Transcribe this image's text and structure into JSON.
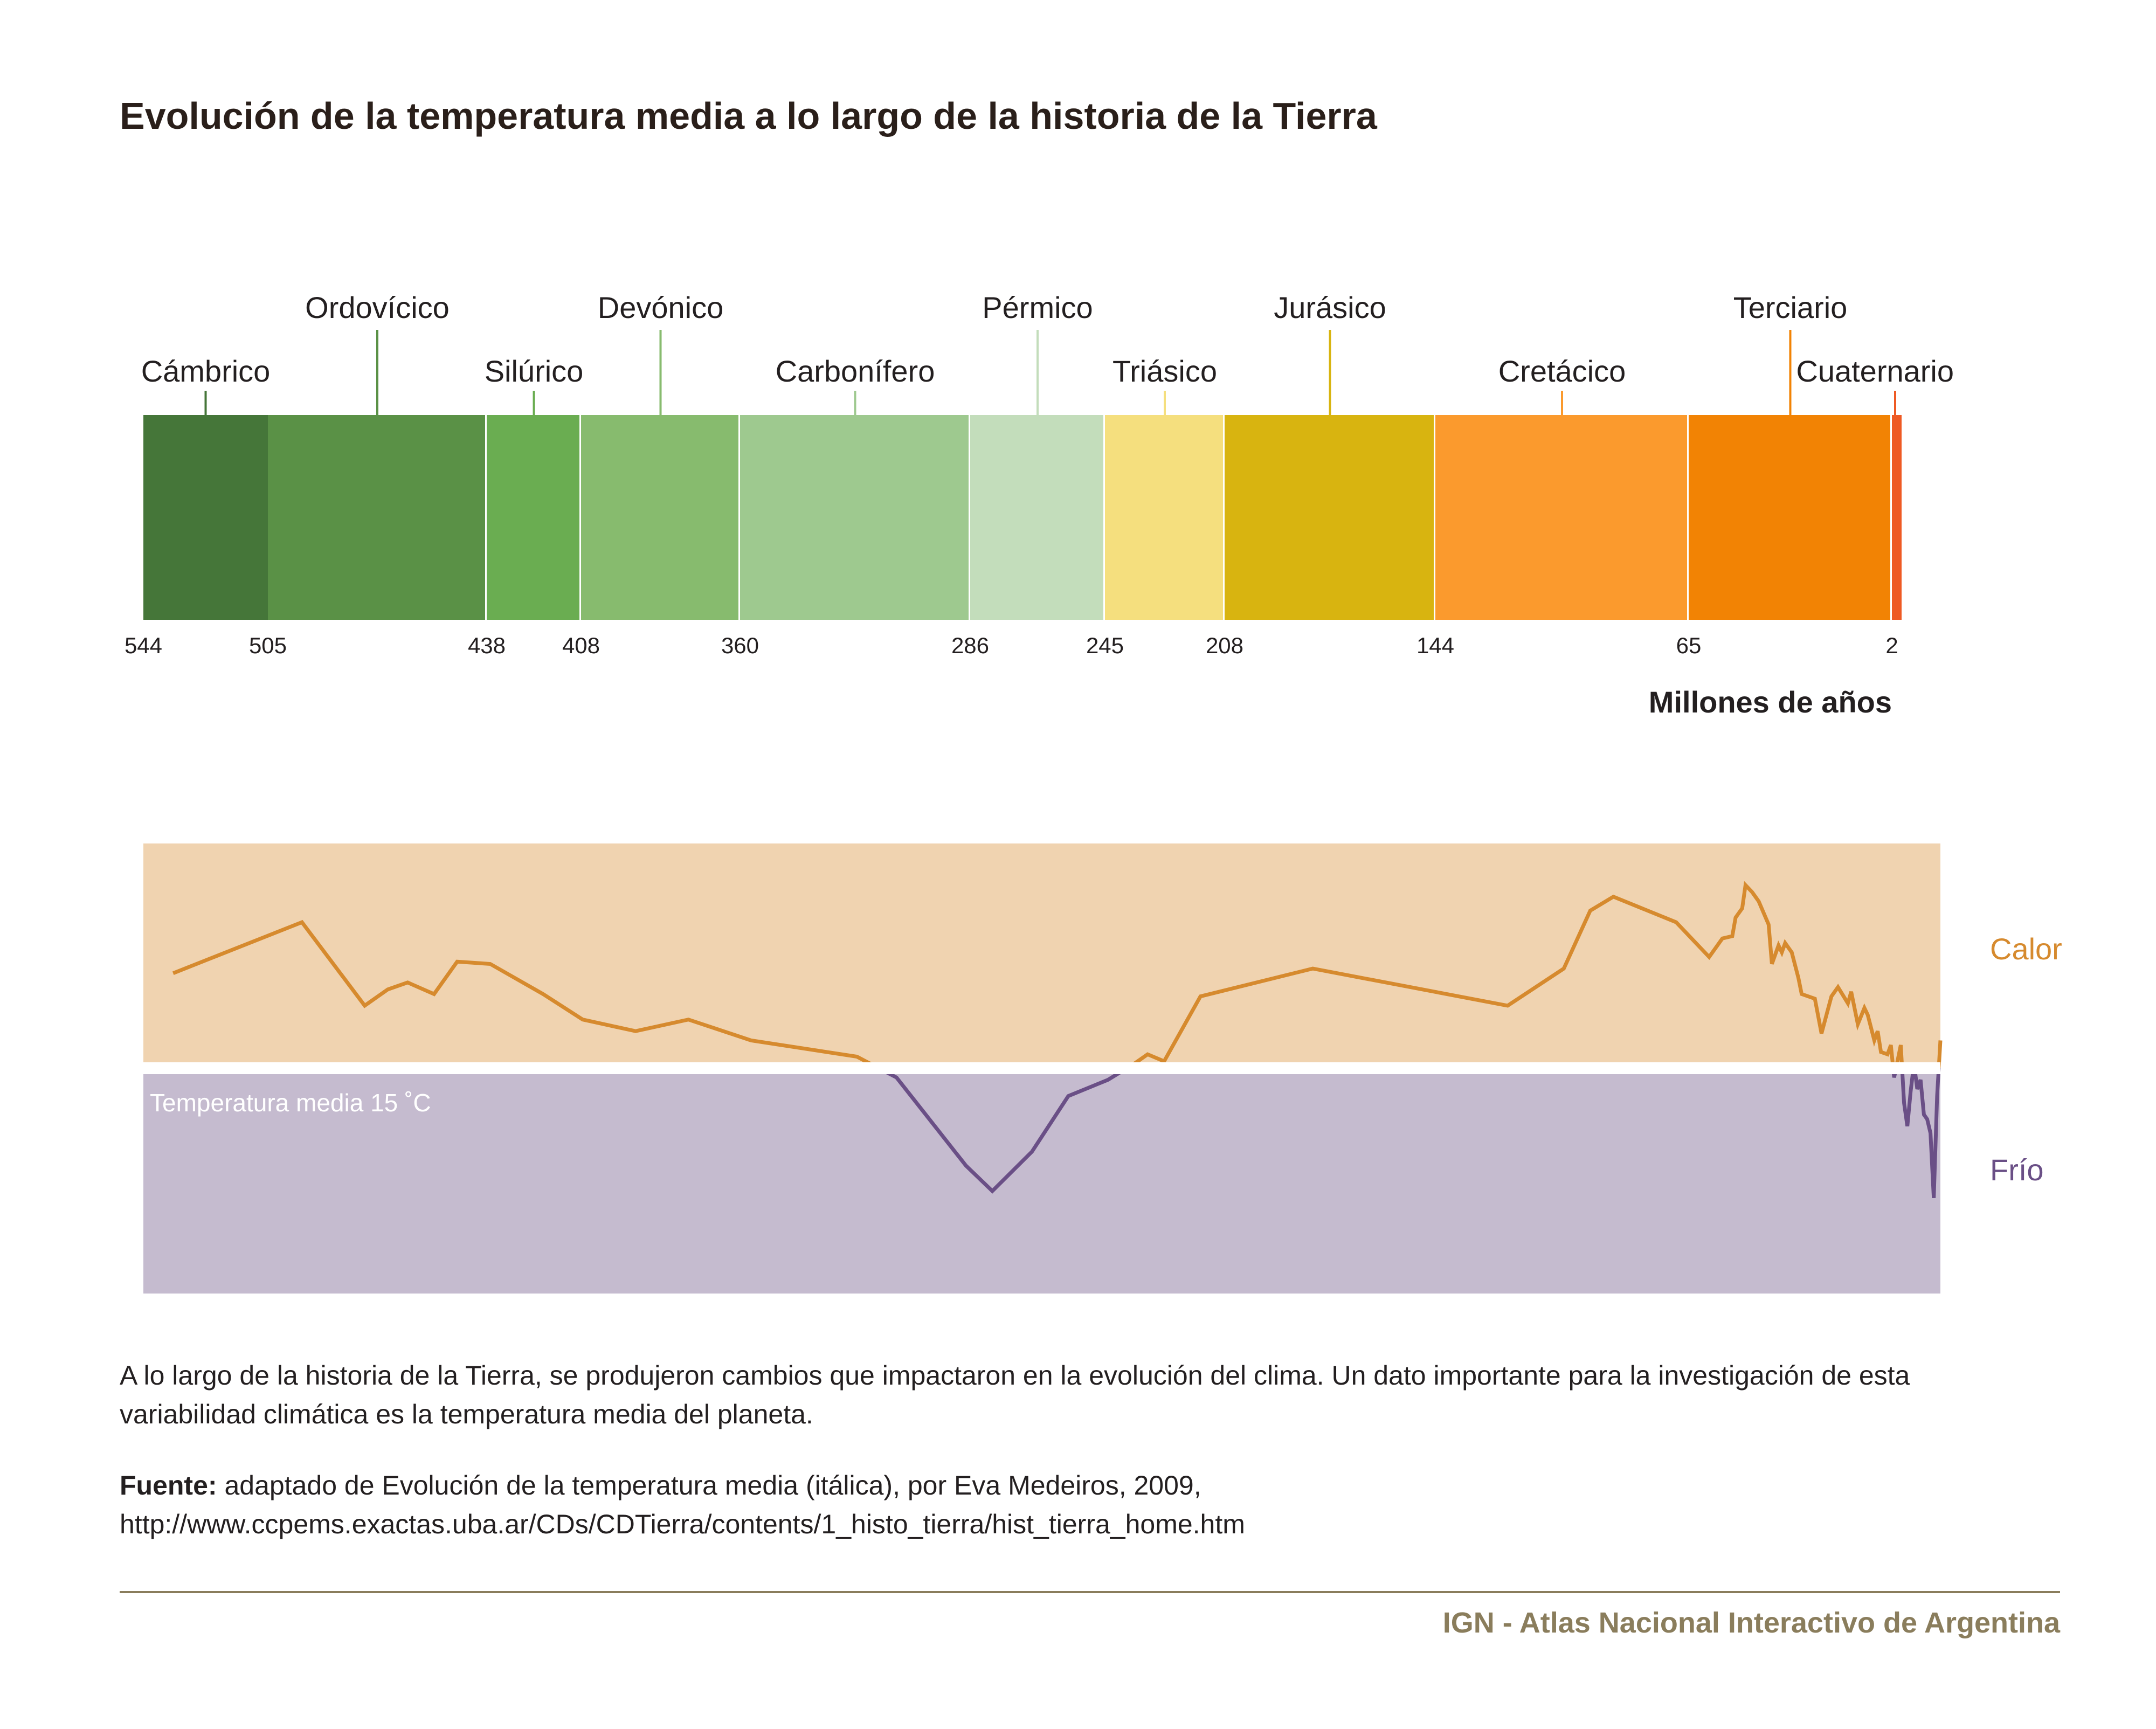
{
  "title": "Evolución de la temperatura media a lo largo de la historia de la Tierra",
  "chart_data": [
    {
      "type": "bar",
      "subtype": "geologic-timeline",
      "xlabel": "Millones de años",
      "x_reversed": true,
      "xlim": [
        544,
        0
      ],
      "periods": [
        {
          "name": "Cámbrico",
          "start": 544,
          "end": 505,
          "color": "#457639"
        },
        {
          "name": "Ordovícico",
          "start": 505,
          "end": 438,
          "color": "#5a9146"
        },
        {
          "name": "Silúrico",
          "start": 438,
          "end": 408,
          "color": "#6aad51"
        },
        {
          "name": "Devónico",
          "start": 408,
          "end": 360,
          "color": "#87bb6e"
        },
        {
          "name": "Carbonífero",
          "start": 360,
          "end": 286,
          "color": "#9ec98f"
        },
        {
          "name": "Pérmico",
          "start": 286,
          "end": 245,
          "color": "#c3ddbb"
        },
        {
          "name": "Triásico",
          "start": 245,
          "end": 208,
          "color": "#f5df7e"
        },
        {
          "name": "Jurásico",
          "start": 208,
          "end": 144,
          "color": "#d8b410"
        },
        {
          "name": "Cretácico",
          "start": 144,
          "end": 65,
          "color": "#fb9a2d"
        },
        {
          "name": "Terciario",
          "start": 65,
          "end": 2,
          "color": "#f28304"
        },
        {
          "name": "Cuaternario",
          "start": 2,
          "end": 0,
          "color": "#ee5a24"
        }
      ],
      "ticks": [
        {
          "value": 544,
          "label": "544"
        },
        {
          "value": 505,
          "label": "505"
        },
        {
          "value": 438,
          "label": "438"
        },
        {
          "value": 408,
          "label": "408"
        },
        {
          "value": 360,
          "label": "360"
        },
        {
          "value": 286,
          "label": "286"
        },
        {
          "value": 245,
          "label": "245"
        },
        {
          "value": 208,
          "label": "208"
        },
        {
          "value": 144,
          "label": "144"
        },
        {
          "value": 65,
          "label": "65"
        },
        {
          "value": 2,
          "label": "2"
        }
      ]
    },
    {
      "type": "line",
      "subtype": "temperature-anomaly",
      "x_reversed": true,
      "xlim": [
        544,
        0
      ],
      "ylim": [
        -1,
        1
      ],
      "baseline_label": "Temperatura media 15 ˚C",
      "warm_label": "Calor",
      "cold_label": "Frío",
      "warm_color": "#d68a2e",
      "cold_color": "#6a4f86",
      "warm_bg": "#f0d3b0",
      "cold_bg": "#c5bbcf",
      "x": [
        535,
        496,
        477,
        470,
        464,
        456,
        449,
        439,
        423,
        411,
        395,
        379,
        360,
        328,
        316,
        295,
        287,
        275,
        264,
        252,
        244,
        240,
        235,
        224,
        190,
        131,
        114,
        106,
        99,
        80,
        70,
        66,
        63,
        62,
        60,
        59,
        57,
        55,
        52,
        51,
        49,
        48,
        47,
        45,
        43,
        42,
        38,
        36,
        33,
        31,
        28,
        27,
        25,
        23,
        22,
        20,
        19,
        18,
        16,
        15,
        14,
        12,
        11,
        10,
        9,
        8,
        7,
        6,
        5,
        4,
        3,
        2,
        1,
        0
      ],
      "y": [
        0.41,
        0.63,
        0.27,
        0.34,
        0.37,
        0.32,
        0.46,
        0.45,
        0.32,
        0.21,
        0.16,
        0.21,
        0.12,
        0.05,
        -0.04,
        -0.42,
        -0.53,
        -0.36,
        -0.12,
        -0.05,
        0.02,
        0.06,
        0.03,
        0.31,
        0.43,
        0.27,
        0.43,
        0.68,
        0.74,
        0.63,
        0.48,
        0.56,
        0.57,
        0.65,
        0.69,
        0.79,
        0.76,
        0.72,
        0.62,
        0.45,
        0.53,
        0.5,
        0.54,
        0.5,
        0.39,
        0.32,
        0.3,
        0.15,
        0.31,
        0.35,
        0.28,
        0.33,
        0.19,
        0.26,
        0.23,
        0.12,
        0.16,
        0.07,
        0.06,
        0.1,
        -0.04,
        0.1,
        -0.15,
        -0.25,
        -0.1,
        0.02,
        -0.09,
        -0.05,
        -0.2,
        -0.22,
        -0.28,
        -0.56,
        -0.12,
        0.12
      ]
    }
  ],
  "description": "A lo largo de la historia de la Tierra, se produjeron cambios que impactaron en la evolución del clima. Un dato importante para la investigación de esta variabilidad climática es la temperatura media del planeta.",
  "source": {
    "label": "Fuente:",
    "text": "adaptado de Evolución de la temperatura media (itálica), por Eva Medeiros, 2009,",
    "url": "http://www.ccpems.exactas.uba.ar/CDs/CDTierra/contents/1_histo_tierra/hist_tierra_home.htm"
  },
  "footer": "IGN - Atlas Nacional Interactivo de Argentina"
}
